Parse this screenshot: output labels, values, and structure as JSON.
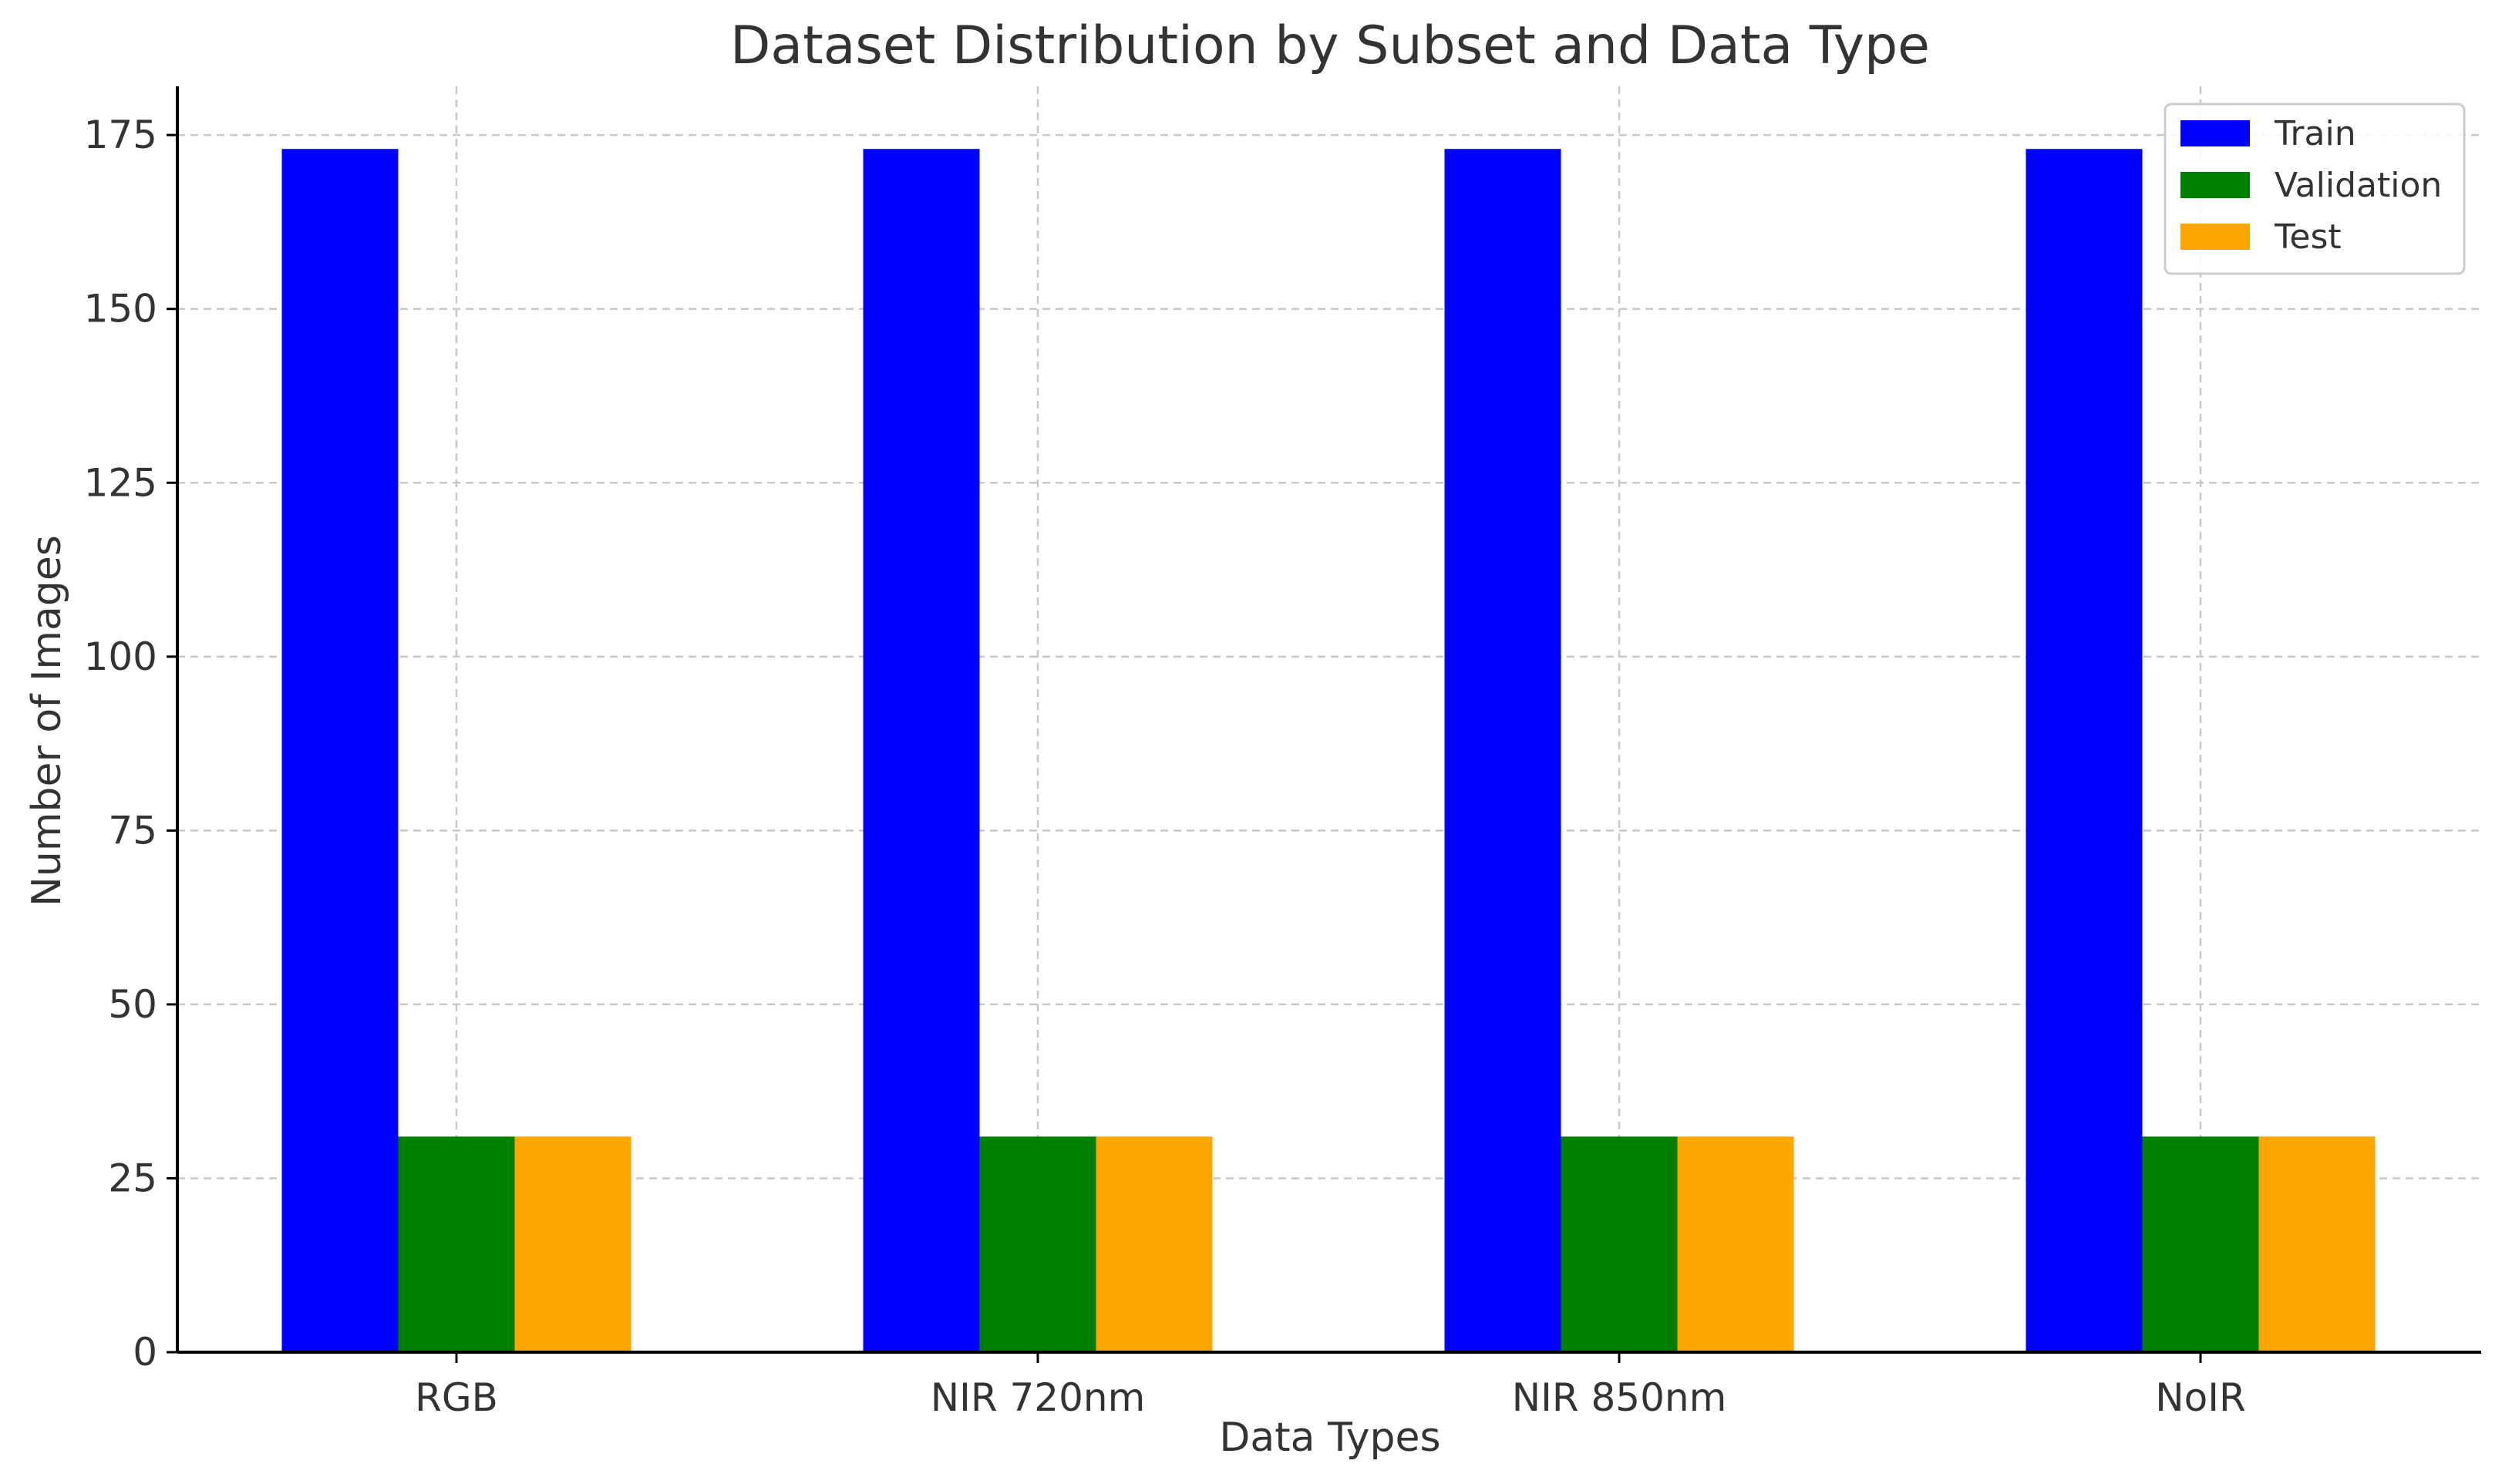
{
  "chart_data": {
    "type": "bar",
    "title": "Dataset Distribution by Subset and Data Type",
    "xlabel": "Data Types",
    "ylabel": "Number of Images",
    "categories": [
      "RGB",
      "NIR 720nm",
      "NIR 850nm",
      "NoIR"
    ],
    "series": [
      {
        "name": "Train",
        "color": "#0000ff",
        "values": [
          173,
          173,
          173,
          173
        ]
      },
      {
        "name": "Validation",
        "color": "#008000",
        "values": [
          31,
          31,
          31,
          31
        ]
      },
      {
        "name": "Test",
        "color": "#ffa500",
        "values": [
          31,
          31,
          31,
          31
        ]
      }
    ],
    "ylim": [
      0,
      182
    ],
    "yticks": [
      0,
      25,
      50,
      75,
      100,
      125,
      150,
      175
    ],
    "grid": true,
    "legend_position": "top-right"
  }
}
